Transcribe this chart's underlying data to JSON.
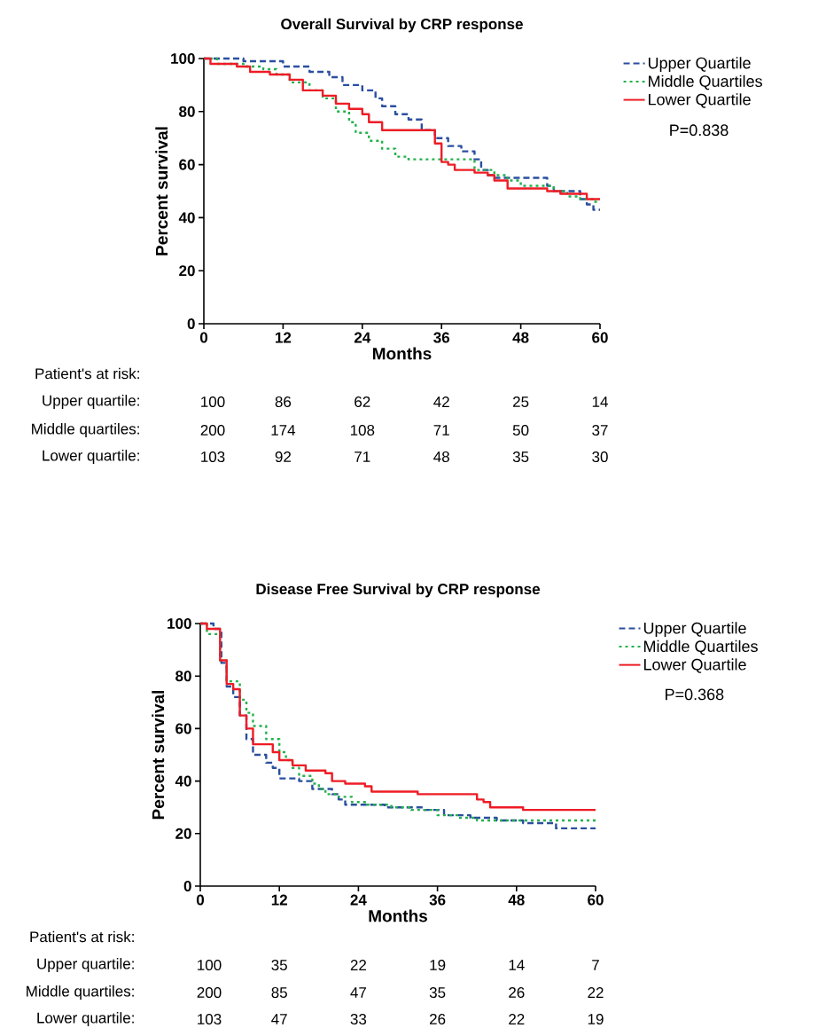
{
  "chart_data": [
    {
      "type": "step",
      "title": "Overall Survival by CRP response",
      "xlabel": "Months",
      "ylabel": "Percent survival",
      "xlim": [
        0,
        60
      ],
      "ylim": [
        0,
        100
      ],
      "xticks": [
        0,
        12,
        24,
        36,
        48,
        60
      ],
      "yticks": [
        0,
        20,
        40,
        60,
        80,
        100
      ],
      "legend": "right",
      "marker": "none",
      "series": [
        {
          "name": "Upper Quartile",
          "color": "#2a4fa0",
          "line_style": "dashed",
          "x": [
            0,
            6,
            12,
            16,
            19,
            21,
            24,
            26,
            27,
            29,
            31,
            33,
            35,
            37,
            39,
            41,
            42,
            43,
            44,
            52,
            53,
            57,
            58,
            59,
            60
          ],
          "values": [
            100,
            99,
            97,
            95,
            93,
            90,
            88,
            85,
            82,
            79,
            77,
            73,
            70,
            67,
            65,
            62,
            58,
            56,
            55,
            52,
            50,
            47,
            45,
            43,
            43
          ]
        },
        {
          "name": "Middle Quartiles",
          "color": "#22b14c",
          "line_style": "dotted",
          "x": [
            0,
            2,
            6,
            9,
            11,
            13,
            16,
            18,
            20,
            22,
            23,
            25,
            27,
            29,
            31,
            41,
            44,
            46,
            48,
            53,
            55,
            57,
            59,
            60
          ],
          "values": [
            100,
            98,
            97,
            96,
            94,
            91,
            88,
            85,
            80,
            76,
            72,
            69,
            66,
            63,
            62,
            58,
            56,
            54,
            52,
            50,
            48,
            47,
            46,
            46
          ]
        },
        {
          "name": "Lower Quartile",
          "color": "#ee1c25",
          "line_style": "solid",
          "x": [
            0,
            1,
            5,
            7,
            10,
            13,
            15,
            18,
            20,
            22,
            24,
            25,
            27,
            35,
            36,
            37,
            38,
            41,
            43,
            44,
            46,
            52,
            54,
            58,
            60
          ],
          "values": [
            100,
            98,
            97,
            95,
            94,
            92,
            88,
            86,
            83,
            81,
            79,
            76,
            73,
            68,
            61,
            60,
            58,
            57,
            56,
            54,
            51,
            50,
            49,
            47,
            47
          ]
        }
      ],
      "annotations": [
        "P=0.838",
        "Patient's at risk:",
        "Upper quartile:",
        "100",
        "86",
        "62",
        "42",
        "25",
        "14",
        "Middle quartiles:",
        "200",
        "174",
        "108",
        "71",
        "50",
        "37",
        "Lower quartile:",
        "103",
        "92",
        "71",
        "48",
        "35",
        "30"
      ]
    },
    {
      "type": "step",
      "title": "Disease Free Survival by CRP response",
      "xlabel": "Months",
      "ylabel": "Percent survival",
      "xlim": [
        0,
        60
      ],
      "ylim": [
        0,
        100
      ],
      "xticks": [
        0,
        12,
        24,
        36,
        48,
        60
      ],
      "yticks": [
        0,
        20,
        40,
        60,
        80,
        100
      ],
      "legend": "right",
      "marker": "none",
      "series": [
        {
          "name": "Upper Quartile",
          "color": "#2a4fa0",
          "line_style": "dashed",
          "x": [
            0,
            2,
            3.2,
            4,
            5,
            6,
            7,
            8,
            10,
            11,
            12,
            15,
            17,
            20,
            21,
            22,
            28,
            34,
            37,
            41,
            45,
            49,
            54,
            60
          ],
          "values": [
            100,
            98,
            85,
            76,
            72,
            65,
            56,
            50,
            47,
            45,
            41,
            40,
            37,
            35,
            33,
            31,
            30,
            29,
            27,
            26,
            25,
            24,
            22,
            22
          ]
        },
        {
          "name": "Middle Quartiles",
          "color": "#22b14c",
          "line_style": "dotted",
          "x": [
            0,
            1,
            3,
            4,
            6,
            7,
            8,
            10,
            12,
            13,
            14,
            15,
            17,
            18,
            19,
            21,
            23,
            25,
            29,
            32,
            36,
            39,
            42,
            60
          ],
          "values": [
            100,
            96,
            86,
            78,
            71,
            66,
            61,
            56,
            51,
            48,
            45,
            42,
            39,
            37,
            35,
            34,
            32,
            31,
            30,
            29,
            27,
            26,
            25,
            25
          ]
        },
        {
          "name": "Lower Quartile",
          "color": "#ee1c25",
          "line_style": "solid",
          "x": [
            0,
            1,
            3,
            4,
            5,
            6,
            7,
            8,
            11,
            12,
            14,
            16,
            19,
            20,
            22,
            25,
            26,
            33,
            42,
            43,
            44,
            49,
            60
          ],
          "values": [
            100,
            98,
            86,
            77,
            75,
            65,
            60,
            54,
            51,
            48,
            46,
            44,
            43,
            40,
            39,
            38,
            36,
            35,
            33,
            32,
            30,
            29,
            29
          ]
        }
      ],
      "annotations": [
        "P=0.368",
        "Patient's at risk:",
        "Upper quartile:",
        "100",
        "35",
        "22",
        "19",
        "14",
        "7",
        "Middle quartiles:",
        "200",
        "85",
        "47",
        "35",
        "26",
        "22",
        "Lower quartile:",
        "103",
        "47",
        "33",
        "26",
        "22",
        "19"
      ]
    }
  ]
}
